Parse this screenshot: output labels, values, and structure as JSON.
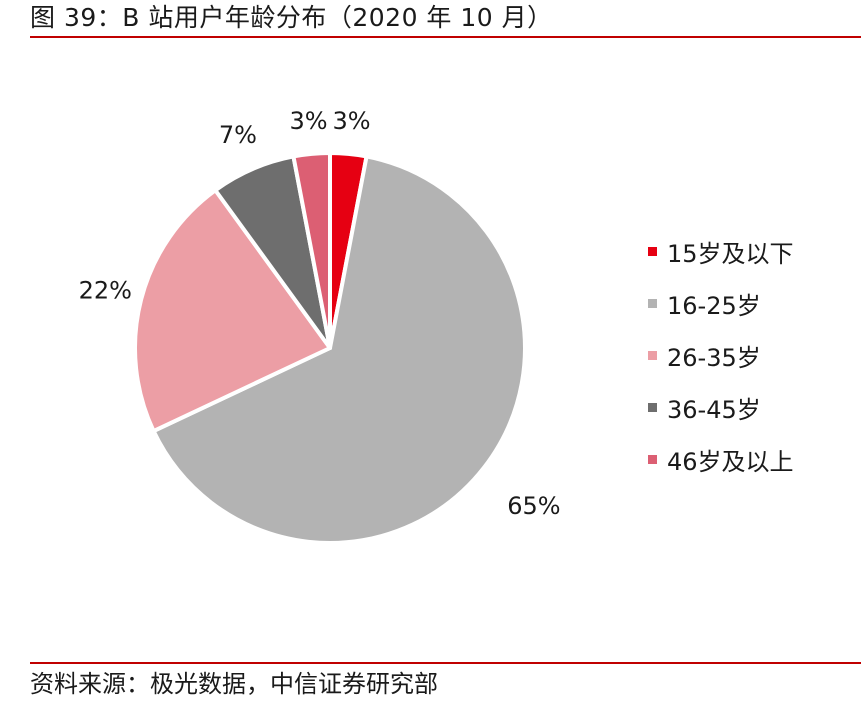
{
  "header": {
    "title": "图 39：B 站用户年龄分布（2020 年 10 月）"
  },
  "footer": {
    "source": "资料来源：极光数据，中信证券研究部"
  },
  "chart_data": {
    "type": "pie",
    "title": "",
    "legend_position": "right",
    "categories": [
      "15岁及以下",
      "16-25岁",
      "26-35岁",
      "36-45岁",
      "46岁及以上"
    ],
    "values": [
      3,
      65,
      22,
      7,
      3
    ],
    "data_labels": [
      "3%",
      "65%",
      "22%",
      "7%",
      "3%"
    ],
    "colors": [
      "#e60012",
      "#b3b3b3",
      "#ec9ea5",
      "#6e6e6e",
      "#dc5f73"
    ]
  }
}
